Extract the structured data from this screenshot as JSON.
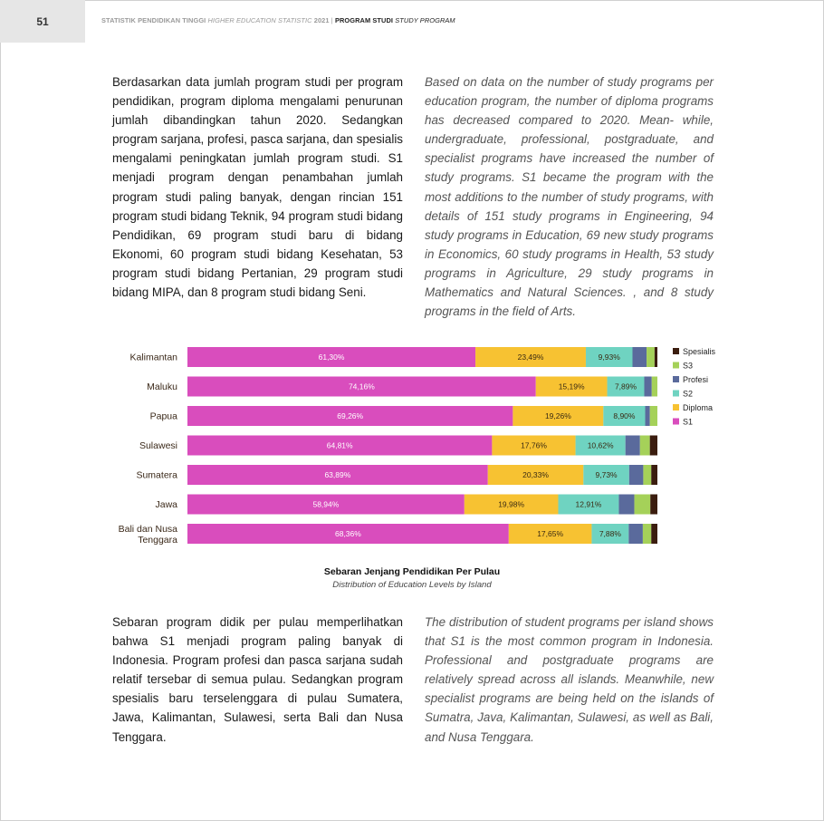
{
  "header": {
    "page_number": "51",
    "pub_id": "STATISTIK PENDIDIKAN TINGGI",
    "pub_en": "HIGHER EDUCATION STATISTIC",
    "year": "2021",
    "separator": "|",
    "section_id": "PROGRAM STUDI",
    "section_en": "STUDY PROGRAM"
  },
  "paragraphs": {
    "intro_id": "Berdasarkan data jumlah program studi per program pendidikan, program diploma mengalami penurunan jumlah dibandingkan tahun 2020. Sedangkan program sarjana, profesi, pasca sarjana, dan spesialis mengalami peningkatan jumlah program studi. S1 menjadi program dengan penambahan jumlah program studi paling banyak, dengan rincian 151 program studi bidang Teknik, 94 program studi bidang Pendidikan, 69 program studi baru di bidang Ekonomi, 60 program studi bidang Kesehatan, 53 program studi bidang Pertanian, 29 program studi bidang MIPA, dan 8 program studi bidang Seni.",
    "intro_en": "Based on data on the number of study programs per education program, the number of diploma programs has decreased compared to 2020. Mean- while, undergraduate, professional, postgraduate, and specialist programs have increased the number of study programs. S1 became the program with the most additions to the number of study programs, with details of 151 study programs in Engineering, 94 study programs in Education, 69 new study programs in Economics, 60 study programs in Health, 53 study programs in Agriculture, 29 study programs in Mathematics and Natural Sciences. , and 8 study programs in the field of Arts.",
    "closing_id": "Sebaran program didik per pulau memperlihatkan bahwa S1 menjadi program paling banyak di Indonesia. Program profesi dan pasca sarjana sudah relatif tersebar di semua pulau. Sedangkan program spesialis baru terselenggara di pulau Sumatera, Jawa, Kalimantan, Sulawesi, serta Bali dan Nusa Tenggara.",
    "closing_en": "The distribution of student programs per island shows that S1 is the most common program in Indonesia. Professional and postgraduate programs are relatively spread across all islands. Meanwhile, new specialist programs are being held on the islands of Sumatra, Java, Kalimantan, Sulawesi, as well as Bali, and Nusa Tenggara."
  },
  "chart_data": {
    "type": "bar",
    "orientation": "horizontal",
    "stacked": true,
    "normalized": true,
    "title": "Sebaran Jenjang Pendidikan Per Pulau",
    "subtitle": "Distribution of Education Levels by Island",
    "legend_position": "right",
    "categories": [
      "Kalimantan",
      "Maluku",
      "Papua",
      "Sulawesi",
      "Sumatera",
      "Jawa",
      "Bali dan Nusa Tenggara"
    ],
    "series": [
      {
        "name": "S1",
        "color": "#d94dbd",
        "values": [
          61.3,
          74.16,
          69.26,
          64.81,
          63.89,
          58.94,
          68.36
        ],
        "labels": [
          "61,30%",
          "74,16%",
          "69,26%",
          "64,81%",
          "63,89%",
          "58,94%",
          "68,36%"
        ]
      },
      {
        "name": "Diploma",
        "color": "#f7c232",
        "values": [
          23.49,
          15.19,
          19.26,
          17.76,
          20.33,
          19.98,
          17.65
        ],
        "labels": [
          "23,49%",
          "15,19%",
          "19,26%",
          "17,76%",
          "20,33%",
          "19,98%",
          "17,65%"
        ]
      },
      {
        "name": "S2",
        "color": "#6fd3c1",
        "values": [
          9.93,
          7.89,
          8.9,
          10.62,
          9.73,
          12.91,
          7.88
        ],
        "labels": [
          "9,93%",
          "7,89%",
          "8,90%",
          "10,62%",
          "9,73%",
          "12,91%",
          "7,88%"
        ]
      },
      {
        "name": "Profesi",
        "color": "#5a6a9c",
        "values": [
          3.0,
          1.6,
          1.0,
          3.1,
          3.0,
          3.3,
          3.0
        ]
      },
      {
        "name": "S3",
        "color": "#a5d159",
        "values": [
          1.7,
          1.2,
          1.6,
          2.1,
          1.7,
          3.4,
          1.8
        ]
      },
      {
        "name": "Spesialis",
        "color": "#3b1d0f",
        "values": [
          0.6,
          0,
          0,
          1.6,
          1.3,
          1.5,
          1.3
        ]
      }
    ],
    "legend_order": [
      "Spesialis",
      "S3",
      "Profesi",
      "S2",
      "Diploma",
      "S1"
    ],
    "xlim": [
      0,
      100
    ],
    "grid": false
  }
}
